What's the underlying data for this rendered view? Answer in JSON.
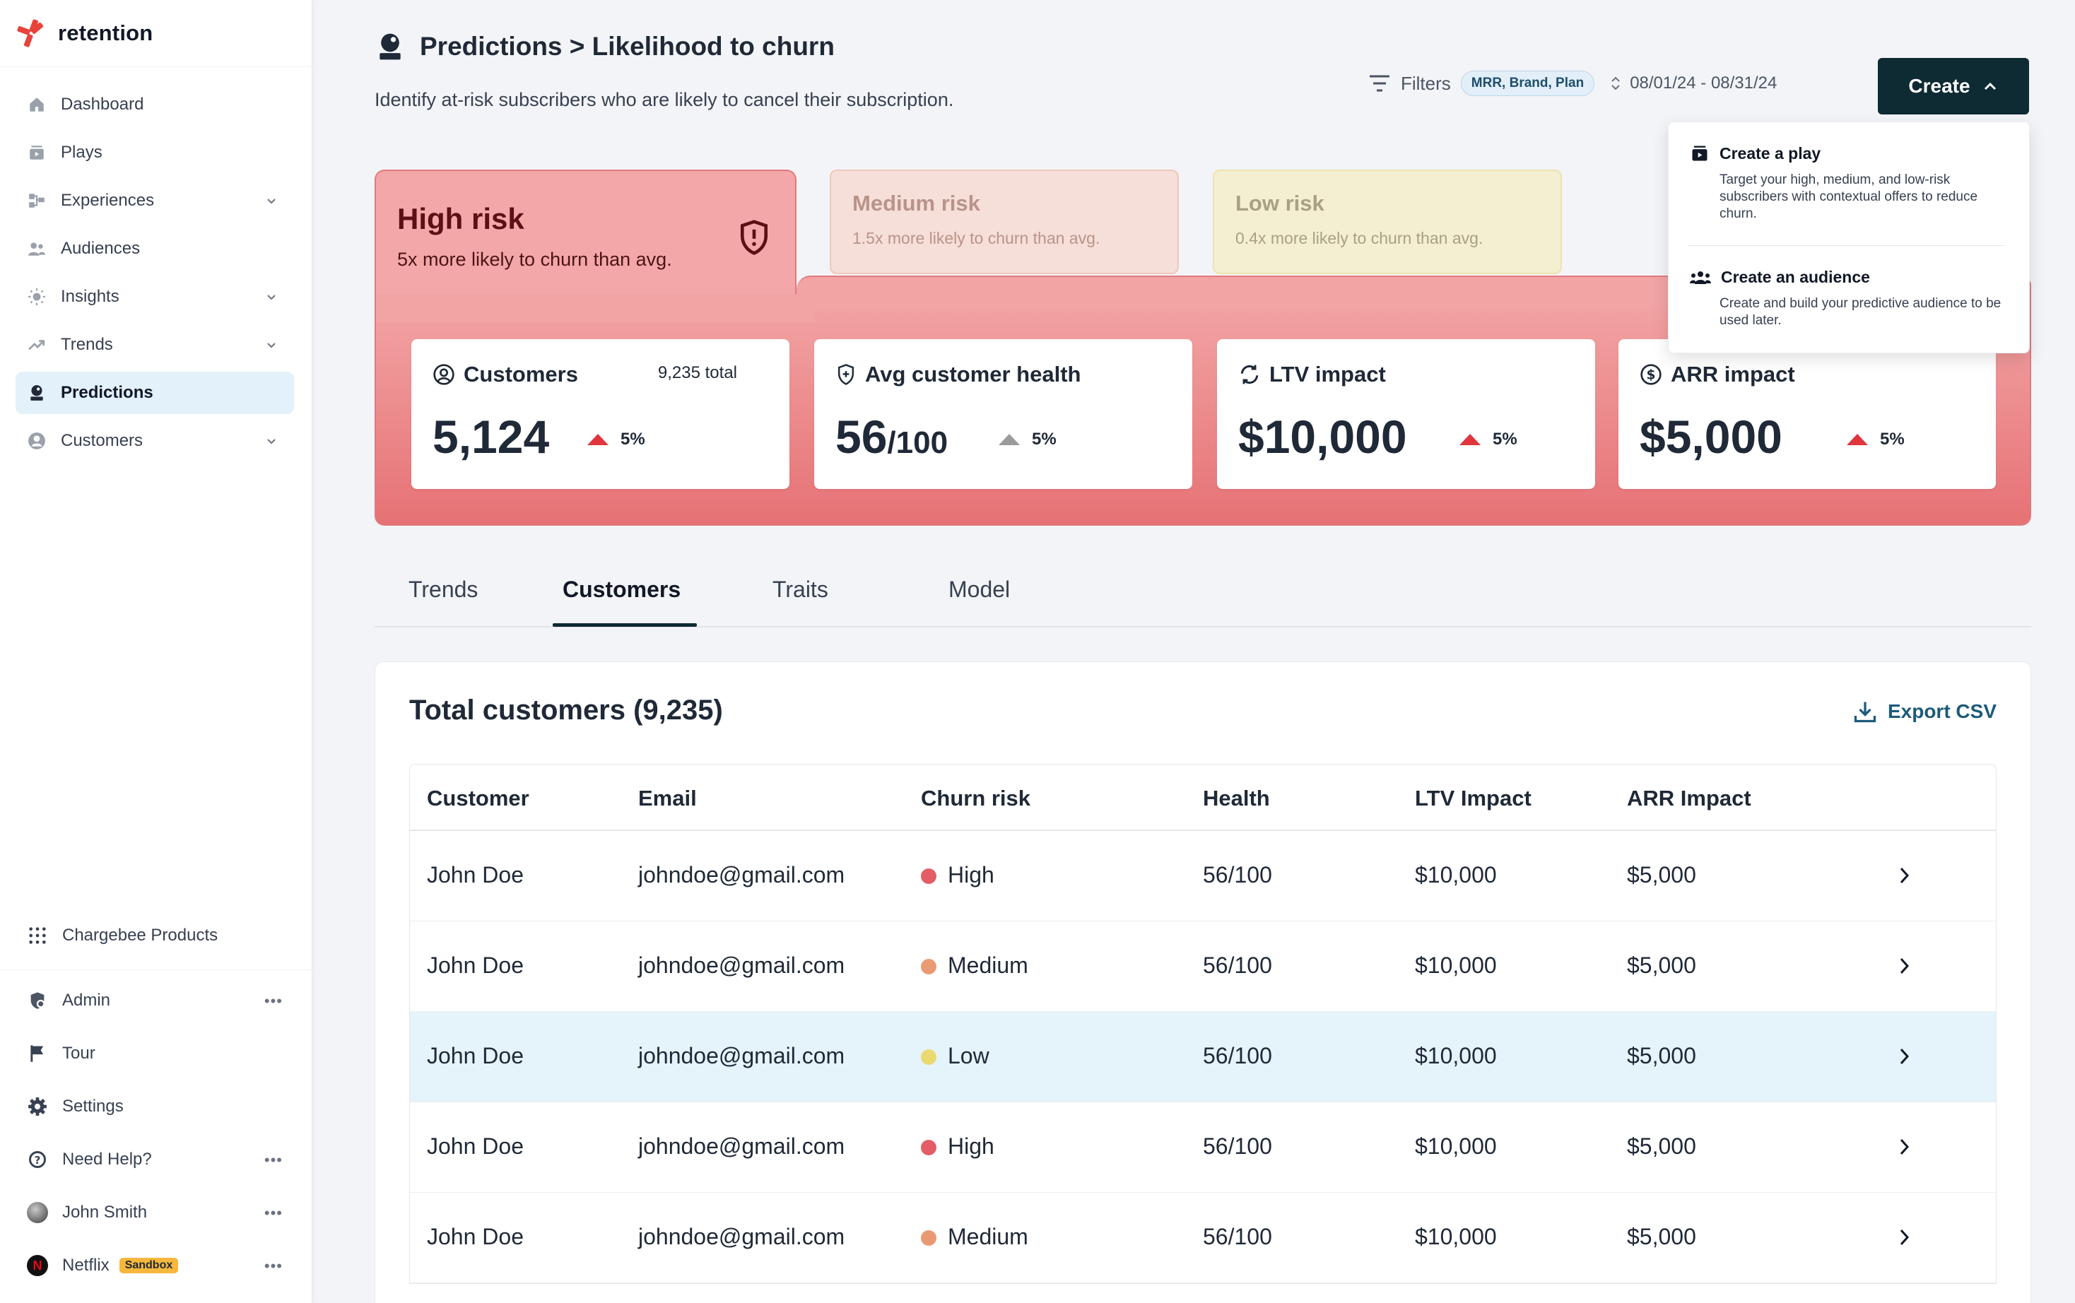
{
  "app": {
    "name": "retention"
  },
  "sidebar": {
    "items": [
      {
        "label": "Dashboard",
        "icon": "home-icon",
        "chevron": false
      },
      {
        "label": "Plays",
        "icon": "plays-icon",
        "chevron": false
      },
      {
        "label": "Experiences",
        "icon": "experiences-icon",
        "chevron": true
      },
      {
        "label": "Audiences",
        "icon": "audiences-icon",
        "chevron": false
      },
      {
        "label": "Insights",
        "icon": "lightbulb-icon",
        "chevron": true
      },
      {
        "label": "Trends",
        "icon": "trend-icon",
        "chevron": true
      },
      {
        "label": "Predictions",
        "icon": "predictions-icon",
        "chevron": false,
        "active": true
      },
      {
        "label": "Customers",
        "icon": "customer-icon",
        "chevron": true
      }
    ],
    "products": "Chargebee Products",
    "bottom": {
      "admin": "Admin",
      "tour": "Tour",
      "settings": "Settings",
      "help": "Need Help?",
      "user": "John Smith",
      "org": "Netflix",
      "org_badge": "Sandbox"
    }
  },
  "header": {
    "title": "Predictions > Likelihood to churn",
    "subtitle": "Identify at-risk subscribers who are likely to cancel their subscription.",
    "filters_label": "Filters",
    "filter_chip": "MRR, Brand, Plan",
    "date_range": "08/01/24 - 08/31/24",
    "create_label": "Create"
  },
  "dropdown": {
    "play_title": "Create a play",
    "play_desc": "Target your high, medium, and low-risk subscribers with contextual offers to reduce churn.",
    "audience_title": "Create an audience",
    "audience_desc": "Create and build your predictive audience to be used later."
  },
  "risk": {
    "high": {
      "title": "High risk",
      "subtitle": "5x more likely to churn than avg."
    },
    "medium": {
      "title": "Medium risk",
      "subtitle": "1.5x more likely to churn than avg."
    },
    "low": {
      "title": "Low risk",
      "subtitle": "0.4x more likely to churn than avg."
    }
  },
  "metrics": {
    "customers": {
      "label": "Customers",
      "total": "9,235 total",
      "value": "5,124",
      "delta": "5%"
    },
    "health": {
      "label": "Avg customer health",
      "value": "56",
      "suffix": "/100",
      "delta": "5%"
    },
    "ltv": {
      "label": "LTV impact",
      "value": "$10,000",
      "delta": "5%"
    },
    "arr": {
      "label": "ARR impact",
      "value": "$5,000",
      "delta": "5%"
    }
  },
  "tabs": [
    "Trends",
    "Customers",
    "Traits",
    "Model"
  ],
  "table": {
    "title": "Total customers (9,235)",
    "export_label": "Export CSV",
    "columns": [
      "Customer",
      "Email",
      "Churn risk",
      "Health",
      "LTV Impact",
      "ARR Impact"
    ],
    "rows": [
      {
        "customer": "John Doe",
        "email": "johndoe@gmail.com",
        "risk": "High",
        "health": "56/100",
        "ltv": "$10,000",
        "arr": "$5,000"
      },
      {
        "customer": "John Doe",
        "email": "johndoe@gmail.com",
        "risk": "Medium",
        "health": "56/100",
        "ltv": "$10,000",
        "arr": "$5,000"
      },
      {
        "customer": "John Doe",
        "email": "johndoe@gmail.com",
        "risk": "Low",
        "health": "56/100",
        "ltv": "$10,000",
        "arr": "$5,000"
      },
      {
        "customer": "John Doe",
        "email": "johndoe@gmail.com",
        "risk": "High",
        "health": "56/100",
        "ltv": "$10,000",
        "arr": "$5,000"
      },
      {
        "customer": "John Doe",
        "email": "johndoe@gmail.com",
        "risk": "Medium",
        "health": "56/100",
        "ltv": "$10,000",
        "arr": "$5,000"
      }
    ]
  },
  "colors": {
    "accent": "#0e2a33",
    "high": "#e35d67",
    "medium": "#e99a73",
    "low": "#ead970",
    "delta_up": "#e0353d",
    "delta_neutral": "#9b9b9b"
  }
}
